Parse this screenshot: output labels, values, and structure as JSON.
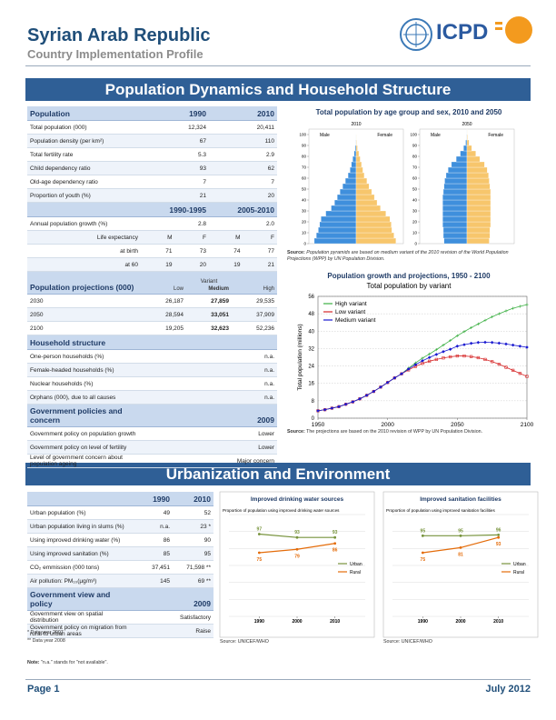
{
  "header": {
    "title": "Syrian Arab Republic",
    "subtitle": "Country Implementation Profile",
    "logo": "ICPD"
  },
  "sections": [
    "Population Dynamics and Household Structure",
    "Urbanization and Environment"
  ],
  "table1": {
    "population": {
      "title": "Population",
      "columns": [
        "1990",
        "2010"
      ],
      "rows": [
        [
          "Total population (000)",
          "12,324",
          "20,411"
        ],
        [
          "Population density (per km²)",
          "67",
          "110"
        ],
        [
          "Total fertility rate",
          "5.3",
          "2.9"
        ],
        [
          "Child dependency ratio",
          "93",
          "62"
        ],
        [
          "Old-age dependency ratio",
          "7",
          "7"
        ],
        [
          "Proportion of youth (%)",
          "21",
          "20"
        ]
      ]
    },
    "growth": {
      "columns": [
        "1990-1995",
        "2005-2010"
      ],
      "rows": [
        [
          "Annual population growth (%)",
          "2.8",
          "2.0"
        ],
        [
          "Life expectancy",
          "M",
          "F",
          "M",
          "F"
        ],
        [
          "at birth",
          "71",
          "73",
          "74",
          "77"
        ],
        [
          "at 60",
          "19",
          "20",
          "19",
          "21"
        ]
      ]
    },
    "projections": {
      "title": "Population projections (000)",
      "super": "Variant",
      "columns": [
        "Low",
        "Medium",
        "High"
      ],
      "rows": [
        [
          "2030",
          "26,187",
          "27,859",
          "29,535"
        ],
        [
          "2050",
          "28,594",
          "33,051",
          "37,909"
        ],
        [
          "2100",
          "19,205",
          "32,623",
          "52,236"
        ]
      ]
    },
    "household": {
      "title": "Household structure",
      "rows": [
        [
          "One-person households (%)",
          "n.a."
        ],
        [
          "Female-headed households (%)",
          "n.a."
        ],
        [
          "Nuclear households (%)",
          "n.a."
        ],
        [
          "Orphans (000), due to all causes",
          "n.a."
        ]
      ]
    },
    "policy": {
      "title": "Government policies and concern",
      "columns": [
        "2009"
      ],
      "rows": [
        [
          "Government policy on population growth",
          "Lower"
        ],
        [
          "Government policy on level of fertility",
          "Lower"
        ],
        [
          "Level of government concern about population ageing",
          "Major concern"
        ]
      ]
    }
  },
  "table2": {
    "urban": {
      "columns": [
        "1990",
        "2010"
      ],
      "rows": [
        [
          "Urban population (%)",
          "49",
          "52"
        ],
        [
          "Urban population living in slums (%)",
          "n.a.",
          "23 *"
        ],
        [
          "Using improved drinking water (%)",
          "86",
          "90"
        ],
        [
          "Using improved sanitation (%)",
          "85",
          "95"
        ],
        [
          "CO₂ emmission (000 tons)",
          "37,451",
          "71,598 **"
        ],
        [
          "Air pollution: PM₁₀(µg/m³)",
          "145",
          "69 **"
        ]
      ]
    },
    "policy": {
      "title": "Government view and policy",
      "columns": [
        "2009"
      ],
      "rows": [
        [
          "Government view on spatial distribution",
          "Satisfactory"
        ],
        [
          "Government policy on migration from rural to urban areas",
          "Raise"
        ]
      ]
    },
    "footnotes": [
      "* Data year 2007",
      "** Data year 2008"
    ],
    "note_label": "Note:",
    "note": "\"n.a.\" stands for \"not available\"."
  },
  "footer": {
    "page": "Page 1",
    "date": "July 2012"
  },
  "chart_data": [
    {
      "type": "pyramid",
      "title": "Total population by age group and sex, 2010 and 2050",
      "ages": [
        0,
        5,
        10,
        15,
        20,
        25,
        30,
        35,
        40,
        45,
        50,
        55,
        60,
        65,
        70,
        75,
        80,
        85,
        90,
        95,
        100
      ],
      "ylim": [
        0,
        105
      ],
      "yticks": [
        0,
        10,
        20,
        30,
        40,
        50,
        60,
        70,
        80,
        90,
        100
      ],
      "xlim": [
        -7,
        7
      ],
      "panels": [
        {
          "label": "2010",
          "series": [
            {
              "name": "Male",
              "color": "#3f8fdc",
              "values": [
                6.2,
                5.9,
                5.6,
                5.4,
                5.2,
                4.5,
                3.7,
                3.2,
                2.8,
                2.4,
                2.0,
                1.6,
                1.2,
                0.9,
                0.7,
                0.5,
                0.3,
                0.15,
                0.05,
                0.01,
                0
              ]
            },
            {
              "name": "Female",
              "color": "#f7c66c",
              "values": [
                5.9,
                5.6,
                5.3,
                5.2,
                5.0,
                4.4,
                3.6,
                3.1,
                2.7,
                2.3,
                1.9,
                1.6,
                1.2,
                1.0,
                0.8,
                0.6,
                0.4,
                0.2,
                0.07,
                0.02,
                0
              ]
            }
          ]
        },
        {
          "label": "2050",
          "series": [
            {
              "name": "Male",
              "color": "#3f8fdc",
              "values": [
                3.4,
                3.5,
                3.5,
                3.6,
                3.6,
                3.6,
                3.6,
                3.6,
                3.6,
                3.5,
                3.4,
                3.3,
                3.1,
                2.8,
                2.3,
                1.6,
                1.0,
                0.5,
                0.2,
                0.05,
                0.01
              ]
            },
            {
              "name": "Female",
              "color": "#f7c66c",
              "values": [
                3.3,
                3.4,
                3.4,
                3.5,
                3.5,
                3.5,
                3.5,
                3.5,
                3.5,
                3.5,
                3.4,
                3.3,
                3.2,
                3.0,
                2.6,
                1.9,
                1.3,
                0.7,
                0.3,
                0.08,
                0.02
              ]
            }
          ]
        }
      ],
      "source_label": "Source:",
      "source": "Population pyramids are based on medium variant of the 2010 revision of the World Population Projections (WPP) by UN Population Division."
    },
    {
      "type": "line",
      "title": "Population growth and projections, 1950 - 2100",
      "subtitle": "Total population by variant",
      "ylabel": "Total population (millions)",
      "x": [
        1950,
        1955,
        1960,
        1965,
        1970,
        1975,
        1980,
        1985,
        1990,
        1995,
        2000,
        2005,
        2010,
        2015,
        2020,
        2025,
        2030,
        2035,
        2040,
        2045,
        2050,
        2055,
        2060,
        2065,
        2070,
        2075,
        2080,
        2085,
        2090,
        2095,
        2100
      ],
      "series": [
        {
          "name": "High variant",
          "color": "#3cb043",
          "values": [
            3.4,
            3.9,
            4.6,
            5.3,
            6.4,
            7.5,
            8.9,
            10.5,
            12.3,
            14.3,
            16.4,
            18.5,
            20.4,
            23.0,
            25.4,
            27.6,
            29.5,
            31.5,
            33.6,
            35.7,
            37.9,
            39.8,
            41.6,
            43.3,
            45.0,
            46.6,
            48.0,
            49.3,
            50.5,
            51.4,
            52.2
          ]
        },
        {
          "name": "Low variant",
          "color": "#d62728",
          "values": [
            3.4,
            3.9,
            4.6,
            5.3,
            6.4,
            7.5,
            8.9,
            10.5,
            12.3,
            14.3,
            16.4,
            18.5,
            20.4,
            22.2,
            23.8,
            25.2,
            26.2,
            27.0,
            27.7,
            28.2,
            28.6,
            28.6,
            28.3,
            27.8,
            27.0,
            26.0,
            24.8,
            23.4,
            22.0,
            20.6,
            19.2
          ]
        },
        {
          "name": "Medium variant",
          "color": "#1a1ad0",
          "values": [
            3.4,
            3.9,
            4.6,
            5.3,
            6.4,
            7.5,
            8.9,
            10.5,
            12.3,
            14.3,
            16.4,
            18.5,
            20.4,
            22.6,
            24.6,
            26.4,
            27.9,
            29.3,
            30.6,
            31.7,
            33.1,
            33.8,
            34.4,
            34.8,
            34.9,
            34.8,
            34.5,
            34.1,
            33.6,
            33.1,
            32.6
          ]
        }
      ],
      "xlim": [
        1950,
        2100
      ],
      "xticks": [
        1950,
        2000,
        2050,
        2100
      ],
      "ylim": [
        0,
        56
      ],
      "yticks": [
        0,
        8,
        16,
        24,
        32,
        40,
        48,
        56
      ],
      "grid": true,
      "legend": "upper left",
      "source_label": "Source:",
      "source": "The projections are based on the 2010 revision of WPP by UN Population Division."
    },
    {
      "type": "line",
      "title": "Improved drinking water sources",
      "subtitle": "Proportion of population using improved drinking water sources",
      "x": [
        1990,
        2000,
        2010
      ],
      "series": [
        {
          "name": "Urban",
          "color": "#77933c",
          "values": [
            97,
            93,
            93
          ]
        },
        {
          "name": "Rural",
          "color": "#e46c0a",
          "values": [
            75,
            79,
            86
          ]
        }
      ],
      "xlim": [
        1982,
        2018
      ],
      "xticks": [
        1990,
        2000,
        2010
      ],
      "ylim": [
        0,
        120
      ],
      "yticks": [
        0,
        20,
        40,
        60,
        80,
        100,
        120
      ],
      "grid": true,
      "legend": "right",
      "source": "Source: UNICEF/WHO"
    },
    {
      "type": "line",
      "title": "Improved sanitation facilities",
      "subtitle": "Proportion of population using improved sanitation facilities",
      "x": [
        1990,
        2000,
        2010
      ],
      "series": [
        {
          "name": "Urban",
          "color": "#77933c",
          "values": [
            95,
            95,
            96
          ]
        },
        {
          "name": "Rural",
          "color": "#e46c0a",
          "values": [
            75,
            81,
            93
          ]
        }
      ],
      "xlim": [
        1982,
        2018
      ],
      "xticks": [
        1990,
        2000,
        2010
      ],
      "ylim": [
        0,
        120
      ],
      "yticks": [
        0,
        20,
        40,
        60,
        80,
        100,
        120
      ],
      "grid": true,
      "legend": "right",
      "source": "Source: UNICEF/WHO"
    }
  ]
}
